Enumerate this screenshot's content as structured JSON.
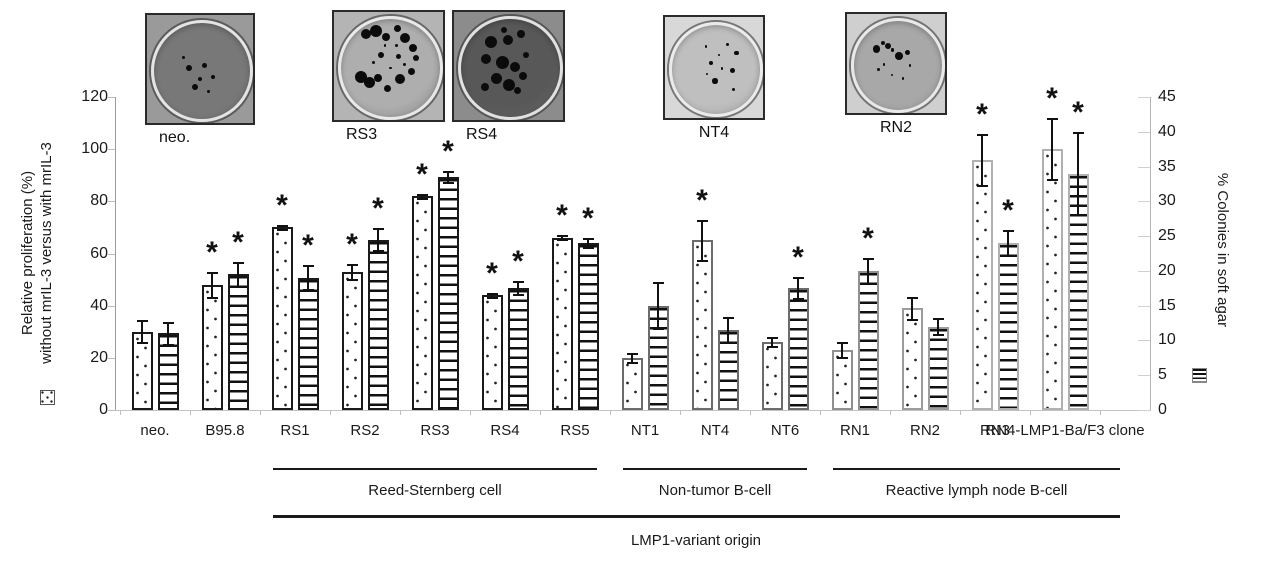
{
  "chart_data": {
    "type": "bar",
    "categories": [
      "neo.",
      "B95.8",
      "RS1",
      "RS2",
      "RS3",
      "RS4",
      "RS5",
      "NT1",
      "NT4",
      "NT6",
      "RN1",
      "RN2",
      "RN3",
      "RN4-LMP1-Ba/F3 clone"
    ],
    "series": [
      {
        "name": "Relative proliferation (%) without mrIL-3 versus with mrIL-3",
        "axis": "left",
        "pattern": "dots",
        "values": [
          30,
          48,
          70,
          53,
          82,
          44,
          66,
          20,
          65,
          26,
          23,
          39,
          96,
          100
        ],
        "errors": [
          4.5,
          5,
          1,
          3,
          1,
          1,
          1,
          1.8,
          8,
          2,
          3,
          4.5,
          10,
          12
        ],
        "significant": [
          false,
          true,
          true,
          true,
          true,
          true,
          true,
          false,
          true,
          false,
          false,
          false,
          true,
          true
        ]
      },
      {
        "name": "% Colonies in soft agar",
        "axis": "right",
        "pattern": "stripes",
        "values": [
          11,
          19.5,
          19,
          24.5,
          33.5,
          17.5,
          24,
          15,
          11.5,
          17.5,
          20,
          12,
          24,
          34
        ],
        "errors": [
          1.7,
          1.8,
          1.8,
          1.6,
          0.9,
          1,
          0.7,
          3.4,
          1.9,
          1.6,
          1.9,
          1.2,
          1.9,
          6
        ],
        "significant": [
          false,
          true,
          true,
          true,
          true,
          true,
          true,
          false,
          false,
          true,
          true,
          false,
          true,
          true
        ]
      }
    ],
    "left_axis": {
      "title_line1": "Relative proliferation (%)",
      "title_line2": "without mrIL-3 versus with mrIL-3",
      "min": 0,
      "max": 120,
      "step": 20,
      "ticks": [
        0,
        20,
        40,
        60,
        80,
        100,
        120
      ]
    },
    "right_axis": {
      "title": "% Colonies in soft agar",
      "min": 0,
      "max": 45,
      "step": 5,
      "ticks": [
        0,
        5,
        10,
        15,
        20,
        25,
        30,
        35,
        40,
        45
      ]
    },
    "significance_marker": "*",
    "bar_outline_colors": [
      "#1a1a1a",
      "#1a1a1a",
      "#1a1a1a",
      "#1a1a1a",
      "#1a1a1a",
      "#1a1a1a",
      "#1a1a1a",
      "#6b6b6b",
      "#6b6b6b",
      "#6b6b6b",
      "#909090",
      "#9c9c9c",
      "#b0b0b0",
      "#b0b0b0"
    ],
    "grid": false,
    "legend_position": "axis-ends",
    "groups": [
      {
        "label": "Reed-Sternberg cell",
        "from": "RS1",
        "to": "RS5"
      },
      {
        "label": "Non-tumor B-cell",
        "from": "NT1",
        "to": "NT6"
      },
      {
        "label": "Reactive lymph node B-cell",
        "from": "RN1",
        "to": "RN4-LMP1-Ba/F3 clone"
      }
    ],
    "bottom_label": "LMP1-variant origin"
  },
  "photos": [
    {
      "label": "neo.",
      "outer": "#9a9a9a",
      "dish": "#787878",
      "colonies": [
        [
          38,
          47,
          3
        ],
        [
          52,
          45,
          2.5
        ],
        [
          48,
          57,
          2
        ],
        [
          44,
          64,
          3
        ],
        [
          60,
          55,
          2
        ],
        [
          33,
          38,
          1.5
        ],
        [
          56,
          68,
          1.5
        ]
      ]
    },
    {
      "label": "RS3",
      "outer": "#b4b4b4",
      "dish": "#aeaeae",
      "colonies": [
        [
          28,
          20,
          5
        ],
        [
          37,
          17,
          6
        ],
        [
          46,
          22,
          4
        ],
        [
          56,
          15,
          3.5
        ],
        [
          63,
          23,
          5
        ],
        [
          70,
          32,
          4
        ],
        [
          42,
          38,
          3
        ],
        [
          57,
          40,
          2.5
        ],
        [
          24,
          58,
          6
        ],
        [
          31,
          63,
          5.5
        ],
        [
          39,
          59,
          4
        ],
        [
          58,
          60,
          5
        ],
        [
          69,
          53,
          3.5
        ],
        [
          47,
          68,
          3.5
        ],
        [
          73,
          41,
          3
        ],
        [
          35,
          45,
          1.5
        ],
        [
          50,
          50,
          1.2
        ],
        [
          62,
          47,
          1.5
        ],
        [
          55,
          30,
          1.4
        ],
        [
          45,
          30,
          1.3
        ]
      ]
    },
    {
      "label": "RS4",
      "outer": "#8c8c8c",
      "dish": "#585858",
      "colonies": [
        [
          33,
          27,
          6
        ],
        [
          48,
          25,
          5
        ],
        [
          59,
          20,
          4
        ],
        [
          28,
          42,
          5
        ],
        [
          43,
          45,
          6.5
        ],
        [
          54,
          49,
          5
        ],
        [
          38,
          59,
          5.5
        ],
        [
          49,
          65,
          6
        ],
        [
          61,
          57,
          4
        ],
        [
          27,
          67,
          4
        ],
        [
          64,
          38,
          3
        ],
        [
          44,
          16,
          3
        ],
        [
          56,
          70,
          3.5
        ]
      ]
    },
    {
      "label": "NT4",
      "outer": "#d8d8d8",
      "dish": "#bfbfbf",
      "colonies": [
        [
          40,
          28,
          1.3
        ],
        [
          61,
          26,
          1.6
        ],
        [
          70,
          34,
          2.2
        ],
        [
          45,
          44,
          2.2
        ],
        [
          56,
          49,
          1.3
        ],
        [
          66,
          51,
          2.4
        ],
        [
          49,
          61,
          2.6
        ],
        [
          41,
          54,
          1.2
        ],
        [
          67,
          69,
          1.6
        ],
        [
          53,
          36,
          1
        ]
      ]
    },
    {
      "label": "RN2",
      "outer": "#cfcfcf",
      "dish": "#a8a8a8",
      "colonies": [
        [
          29,
          34,
          3.8
        ],
        [
          40,
          31,
          3.2
        ],
        [
          35,
          28,
          2
        ],
        [
          51,
          41,
          3.8
        ],
        [
          59,
          37,
          2.6
        ],
        [
          45,
          35,
          1.6
        ],
        [
          31,
          54,
          1.4
        ],
        [
          44,
          59,
          1.2
        ],
        [
          55,
          63,
          1.4
        ],
        [
          36,
          49,
          1.1
        ],
        [
          62,
          50,
          1.2
        ]
      ]
    }
  ]
}
